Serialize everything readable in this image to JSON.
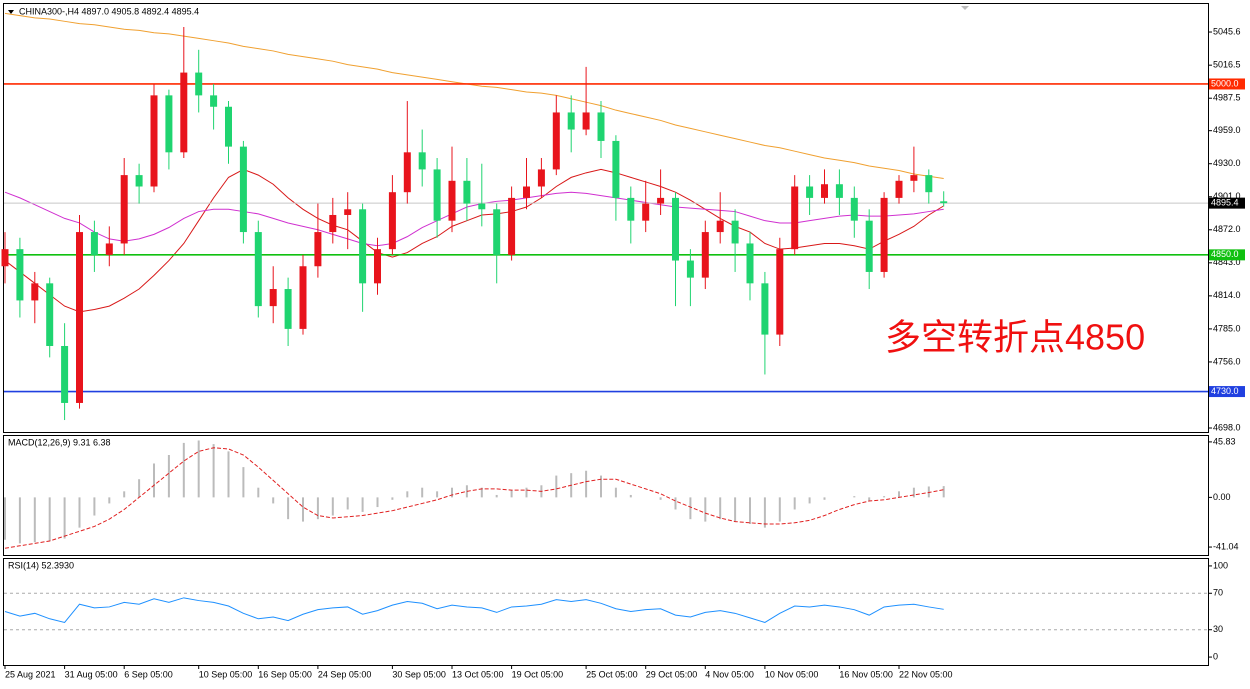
{
  "chart_data": [
    {
      "type": "candlestick",
      "header": "CHINA300-,H4  4897.0 4905.8 4892.4 4895.4",
      "annotation": "多空转折点4850",
      "categories": [
        "25 Aug 2021",
        null,
        null,
        null,
        "31 Aug 05:00",
        null,
        null,
        null,
        "6 Sep 05:00",
        null,
        null,
        null,
        null,
        "10 Sep 05:00",
        null,
        null,
        null,
        "16 Sep 05:00",
        null,
        null,
        null,
        "24 Sep 05:00",
        null,
        null,
        null,
        null,
        "30 Sep 05:00",
        null,
        null,
        null,
        "13 Oct 05:00",
        null,
        null,
        null,
        "19 Oct 05:00",
        null,
        null,
        null,
        null,
        "25 Oct 05:00",
        null,
        null,
        null,
        "29 Oct 05:00",
        null,
        null,
        null,
        "4 Nov 05:00",
        null,
        null,
        null,
        "10 Nov 05:00",
        null,
        null,
        null,
        null,
        "16 Nov 05:00",
        null,
        null,
        null,
        "22 Nov 05:00",
        null,
        null,
        null
      ],
      "open": [
        4840,
        4855,
        4810,
        4825,
        4770,
        4720,
        4870,
        4850,
        4860,
        4920,
        4910,
        4990,
        4940,
        5010,
        4990,
        4980,
        4945,
        4870,
        4805,
        4820,
        4785,
        4840,
        4870,
        4885,
        4890,
        4825,
        4855,
        4905,
        4940,
        4925,
        4880,
        4915,
        4895,
        4890,
        4850,
        4900,
        4910,
        4925,
        4975,
        4960,
        4975,
        4950,
        4900,
        4880,
        4895,
        4900,
        4845,
        4830,
        4870,
        4880,
        4860,
        4825,
        4780,
        4855,
        4910,
        4900,
        4912,
        4900,
        4880,
        4835,
        4900,
        4915,
        4920,
        4897.0
      ],
      "high": [
        4870,
        4865,
        4835,
        4830,
        4790,
        4885,
        4880,
        4875,
        4935,
        4930,
        5000,
        4995,
        5050,
        5030,
        5000,
        4985,
        4950,
        4880,
        4840,
        4830,
        4850,
        4895,
        4900,
        4905,
        4895,
        4865,
        4920,
        4985,
        4960,
        4935,
        4945,
        4935,
        4930,
        4895,
        4910,
        4935,
        4935,
        4990,
        4990,
        5015,
        4985,
        4955,
        4910,
        4915,
        4925,
        4905,
        4855,
        4880,
        4905,
        4890,
        4870,
        4835,
        4865,
        4920,
        4920,
        4925,
        4925,
        4910,
        4890,
        4905,
        4920,
        4945,
        4925,
        4905.8
      ],
      "low": [
        4825,
        4795,
        4790,
        4760,
        4705,
        4715,
        4835,
        4840,
        4850,
        4895,
        4905,
        4925,
        4935,
        4975,
        4960,
        4930,
        4860,
        4795,
        4790,
        4770,
        4780,
        4830,
        4860,
        4855,
        4800,
        4815,
        4850,
        4895,
        4910,
        4865,
        4870,
        4880,
        4875,
        4825,
        4845,
        4890,
        4900,
        4920,
        4940,
        4955,
        4935,
        4880,
        4860,
        4870,
        4885,
        4805,
        4805,
        4820,
        4860,
        4835,
        4810,
        4745,
        4770,
        4850,
        4885,
        4895,
        4885,
        4865,
        4820,
        4830,
        4895,
        4905,
        4895,
        4892.4
      ],
      "close": [
        4855,
        4810,
        4825,
        4770,
        4720,
        4870,
        4850,
        4860,
        4920,
        4910,
        4990,
        4940,
        5010,
        4990,
        4980,
        4945,
        4870,
        4805,
        4820,
        4785,
        4840,
        4870,
        4885,
        4890,
        4825,
        4855,
        4905,
        4940,
        4925,
        4880,
        4915,
        4895,
        4890,
        4850,
        4900,
        4910,
        4925,
        4975,
        4960,
        4975,
        4950,
        4900,
        4880,
        4895,
        4900,
        4845,
        4830,
        4870,
        4880,
        4860,
        4825,
        4780,
        4855,
        4910,
        4900,
        4912,
        4900,
        4880,
        4835,
        4900,
        4915,
        4920,
        4905,
        4895.4
      ],
      "up_color": "#e8141c",
      "down_color": "#1fd470",
      "lines": [
        {
          "color": "#f0a030",
          "values": [
            5062,
            5060,
            5058,
            5057,
            5055,
            5053,
            5052,
            5050,
            5048,
            5047,
            5045,
            5044,
            5042,
            5040,
            5038,
            5036,
            5033,
            5031,
            5029,
            5026,
            5024,
            5022,
            5020,
            5017,
            5015,
            5013,
            5010,
            5008,
            5006,
            5004,
            5002,
            5000,
            4998,
            4997,
            4995,
            4993,
            4992,
            4990,
            4987,
            4984,
            4981,
            4977,
            4974,
            4971,
            4968,
            4964,
            4961,
            4958,
            4955,
            4952,
            4949,
            4946,
            4944,
            4941,
            4938,
            4935,
            4933,
            4931,
            4928,
            4926,
            4924,
            4921,
            4919,
            4917
          ]
        },
        {
          "color": "#d81818",
          "values": [
            4845,
            4835,
            4825,
            4815,
            4805,
            4800,
            4802,
            4805,
            4812,
            4820,
            4832,
            4845,
            4860,
            4880,
            4900,
            4918,
            4925,
            4920,
            4912,
            4900,
            4890,
            4882,
            4876,
            4872,
            4862,
            4852,
            4848,
            4852,
            4860,
            4866,
            4875,
            4880,
            4885,
            4886,
            4888,
            4892,
            4900,
            4910,
            4918,
            4922,
            4925,
            4922,
            4918,
            4914,
            4910,
            4905,
            4898,
            4890,
            4882,
            4875,
            4870,
            4860,
            4855,
            4856,
            4858,
            4860,
            4860,
            4858,
            4855,
            4862,
            4868,
            4875,
            4885,
            4893
          ]
        },
        {
          "color": "#d030d0",
          "values": [
            4905,
            4900,
            4894,
            4888,
            4882,
            4878,
            4870,
            4864,
            4862,
            4864,
            4868,
            4874,
            4882,
            4888,
            4890,
            4890,
            4888,
            4886,
            4882,
            4878,
            4875,
            4872,
            4868,
            4864,
            4860,
            4858,
            4860,
            4866,
            4874,
            4880,
            4886,
            4892,
            4895,
            4897,
            4898,
            4900,
            4902,
            4904,
            4905,
            4904,
            4902,
            4900,
            4898,
            4896,
            4894,
            4892,
            4891,
            4890,
            4889,
            4888,
            4884,
            4880,
            4878,
            4878,
            4880,
            4882,
            4884,
            4885,
            4884,
            4884,
            4885,
            4886,
            4888,
            4890
          ]
        }
      ],
      "levels": [
        {
          "value": 5000.0,
          "label": "5000.0",
          "color": "#ff2a00"
        },
        {
          "value": 4850.0,
          "label": "4850.0",
          "color": "#10c010"
        },
        {
          "value": 4730.0,
          "label": "4730.0",
          "color": "#2040e0"
        },
        {
          "value": 4895.4,
          "label": "4895.4",
          "color": "#c8c8c8"
        }
      ],
      "ylim": [
        4694.5,
        5070.2
      ],
      "yticks": [
        5045.6,
        5016.5,
        4987.5,
        {
          "value": 4959.0,
          "label": "4959.0"
        },
        {
          "value": 4930.0,
          "label": "4930.0"
        },
        {
          "value": 4901.0,
          "label": "4901.0"
        },
        {
          "value": 4872.0,
          "label": "4872.0"
        },
        {
          "value": 4843.0,
          "label": "4843.0"
        },
        {
          "value": 4814.0,
          "label": "4814.0"
        },
        {
          "value": 4785.0,
          "label": "4785.0"
        },
        {
          "value": 4756.0,
          "label": "4756.0"
        },
        {
          "value": 4698.0,
          "label": "4698.0"
        }
      ]
    },
    {
      "type": "macd",
      "title": "MACD(12,26,9) 9.31 6.38",
      "values": [
        -35,
        -38,
        -37,
        -36,
        -34,
        -25,
        -15,
        -5,
        5,
        15,
        28,
        35,
        45,
        47,
        44,
        38,
        25,
        8,
        -5,
        -18,
        -20,
        -18,
        -15,
        -10,
        -12,
        -8,
        -2,
        5,
        8,
        5,
        8,
        10,
        8,
        2,
        6,
        8,
        10,
        18,
        20,
        22,
        18,
        8,
        2,
        0,
        -2,
        -10,
        -18,
        -20,
        -18,
        -20,
        -22,
        -25,
        -20,
        -10,
        -5,
        -2,
        0,
        1,
        -3,
        1,
        5,
        8,
        9,
        9.31
      ],
      "signal": [
        -42,
        -40,
        -38,
        -36,
        -32,
        -28,
        -24,
        -18,
        -10,
        0,
        10,
        20,
        30,
        38,
        41,
        40,
        35,
        25,
        14,
        3,
        -8,
        -15,
        -17,
        -16,
        -15,
        -13,
        -11,
        -8,
        -5,
        -2,
        2,
        5,
        7,
        7,
        6,
        6,
        5,
        7,
        10,
        13,
        15,
        15,
        11,
        7,
        3,
        -3,
        -8,
        -13,
        -17,
        -20,
        -21,
        -22,
        -22,
        -21,
        -19,
        -15,
        -10,
        -6,
        -3,
        -2,
        0,
        2,
        4,
        6.38
      ],
      "color": "#bbbbbb",
      "signal_color": "#e02020",
      "ylim": [
        -47.6,
        50.7
      ],
      "yticks": [
        45.83,
        {
          "value": 0,
          "label": "0.00"
        },
        -41.04
      ]
    },
    {
      "type": "line",
      "title": "RSI(14) 52.3930",
      "values": [
        50,
        45,
        48,
        42,
        38,
        58,
        54,
        55,
        60,
        58,
        64,
        60,
        65,
        62,
        60,
        56,
        48,
        42,
        44,
        40,
        47,
        52,
        54,
        55,
        47,
        51,
        57,
        61,
        59,
        53,
        57,
        55,
        54,
        49,
        55,
        56,
        58,
        63,
        61,
        63,
        59,
        53,
        50,
        52,
        53,
        46,
        44,
        49,
        51,
        48,
        43,
        38,
        48,
        56,
        55,
        57,
        55,
        52,
        46,
        55,
        57,
        58,
        55,
        52.393
      ],
      "color": "#1e90ff",
      "levels": [
        70,
        30
      ],
      "ylim": [
        -8.7,
        107.6
      ],
      "yticks": [
        100,
        70,
        30,
        0
      ]
    }
  ]
}
